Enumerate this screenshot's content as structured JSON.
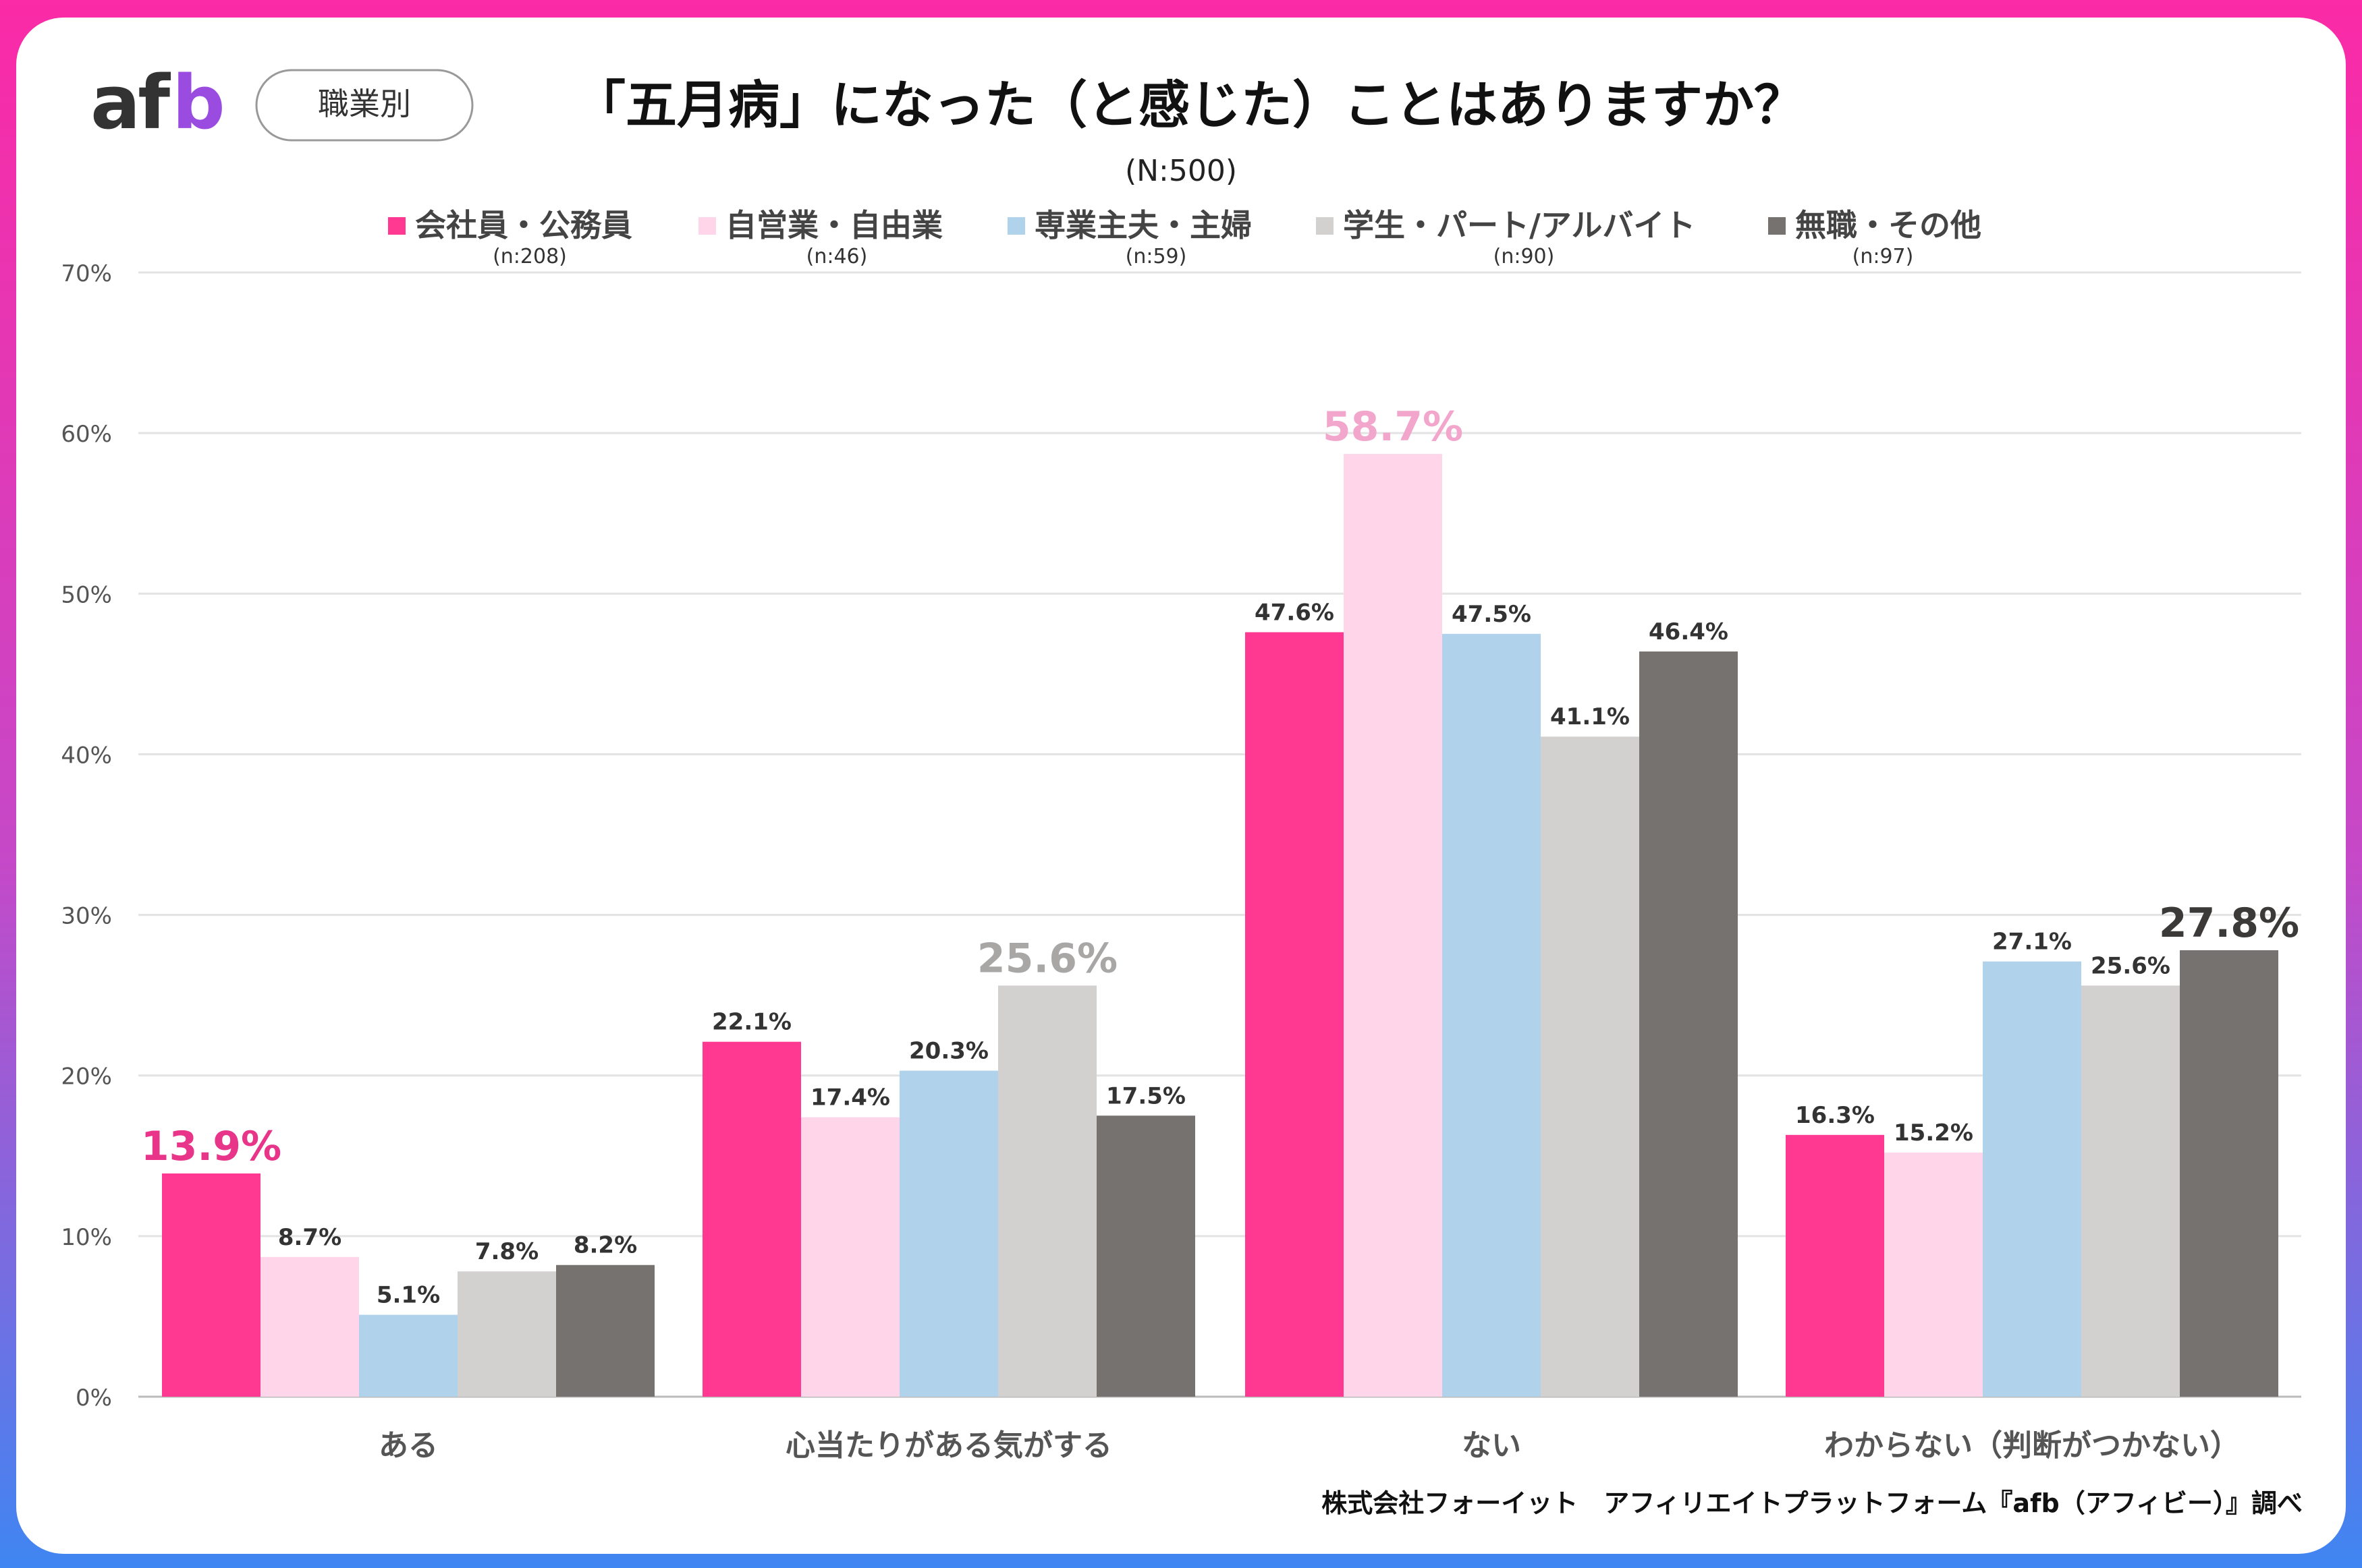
{
  "logo": "afb",
  "badge": "職業別",
  "chart_data": {
    "type": "bar",
    "title": "「五月病」になった（と感じた）ことはありますか？",
    "subtitle": "(N:500)",
    "categories": [
      "ある",
      "心当たりがある気がする",
      "ない",
      "わからない（判断がつかない）"
    ],
    "series": [
      {
        "name": "会社員・公務員",
        "n": "(n:208)",
        "color": "#ff3891",
        "values": [
          13.9,
          22.1,
          47.6,
          16.3
        ]
      },
      {
        "name": "自営業・自由業",
        "n": "(n:46)",
        "color": "#ffd5ea",
        "values": [
          8.7,
          17.4,
          58.7,
          15.2
        ]
      },
      {
        "name": "専業主夫・主婦",
        "n": "(n:59)",
        "color": "#b0d3eb",
        "values": [
          5.1,
          20.3,
          47.5,
          27.1
        ]
      },
      {
        "name": "学生・パート/アルバイト",
        "n": "(n:90)",
        "color": "#d3d0d0",
        "values": [
          7.8,
          25.6,
          41.1,
          25.6
        ]
      },
      {
        "name": "無職・その他",
        "n": "(n:97)",
        "color": "#767270",
        "values": [
          8.2,
          17.5,
          46.4,
          27.8
        ]
      }
    ],
    "highlights": [
      {
        "category": 0,
        "series": 0,
        "color": "#e8358a"
      },
      {
        "category": 1,
        "series": 3,
        "color": "#a9a6a6"
      },
      {
        "category": 2,
        "series": 1,
        "color": "#f2a6cb"
      },
      {
        "category": 3,
        "series": 4,
        "color": "#3c3a39"
      }
    ],
    "ylim": [
      0,
      70
    ],
    "yticks": [
      "0%",
      "10%",
      "20%",
      "30%",
      "40%",
      "50%",
      "60%",
      "70%"
    ],
    "legend": "top",
    "grid": true
  },
  "footer": "株式会社フォーイット　アフィリエイトプラットフォーム『afb（アフィビー）』調べ"
}
